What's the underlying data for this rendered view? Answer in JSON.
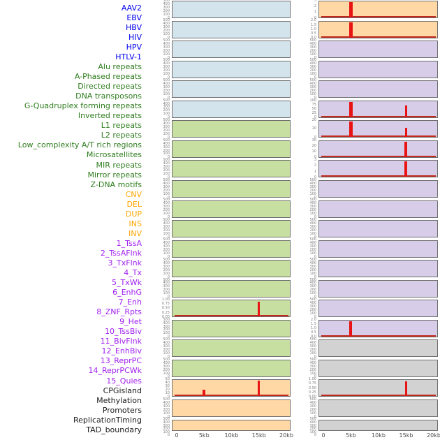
{
  "chart_data": {
    "type": "multi-track-bar",
    "description": "Two columns of 22 genomic signal panels over a 0-20kb window; red spikes mark enrichment at 5kb and 15kb; spike height h is fraction of panel height",
    "x_axis": {
      "ticks": [
        "0",
        "5kb",
        "10kb",
        "15kb",
        "20kb"
      ],
      "range_kb": [
        0,
        20
      ]
    },
    "default_yticks": [
      "500",
      "400",
      "300",
      "200",
      "100",
      "0"
    ],
    "palette": {
      "virus": {
        "label": "#0000ee",
        "panel": "#d4e4ec"
      },
      "repeats": {
        "label": "#2e7d1e",
        "panel": "#c8dfa2"
      },
      "sv": {
        "label": "#ffa500",
        "panel": "#ffd8a5"
      },
      "chromatin": {
        "label": "#a020f0",
        "panel": "#d7cde8"
      },
      "other": {
        "label": "#1a1a1a",
        "panel": "#d2d2d2"
      }
    },
    "spike_color": "#e81414",
    "baseline_color": "#c22a1e",
    "tracks": [
      {
        "label": "AAV2",
        "category": "virus",
        "column": "left"
      },
      {
        "label": "EBV",
        "category": "virus",
        "column": "left"
      },
      {
        "label": "HBV",
        "category": "virus",
        "column": "left"
      },
      {
        "label": "HIV",
        "category": "virus",
        "column": "left"
      },
      {
        "label": "HPV",
        "category": "virus",
        "column": "left"
      },
      {
        "label": "HTLV-1",
        "category": "virus",
        "column": "left"
      },
      {
        "label": "Alu repeats",
        "category": "repeats",
        "column": "left"
      },
      {
        "label": "A-Phased repeats",
        "category": "repeats",
        "column": "left"
      },
      {
        "label": "Directed repeats",
        "category": "repeats",
        "column": "left"
      },
      {
        "label": "DNA transposons",
        "category": "repeats",
        "column": "left"
      },
      {
        "label": "G-Quadruplex forming repeats",
        "category": "repeats",
        "column": "left"
      },
      {
        "label": "Inverted repeats",
        "category": "repeats",
        "column": "left"
      },
      {
        "label": "L1 repeats",
        "category": "repeats",
        "column": "left"
      },
      {
        "label": "L2 repeats",
        "category": "repeats",
        "column": "left"
      },
      {
        "label": "Low_complexity A/T rich regions",
        "category": "repeats",
        "column": "left"
      },
      {
        "label": "Microsatellites",
        "category": "repeats",
        "column": "left",
        "yticks": [
          "1.00",
          "0.75",
          "0.50",
          "0.25",
          "0.00"
        ],
        "spikes": [
          {
            "x_kb": 15,
            "h": 0.95,
            "w": 3
          }
        ],
        "baseline": true
      },
      {
        "label": "MIR repeats",
        "category": "repeats",
        "column": "left"
      },
      {
        "label": "Mirror repeats",
        "category": "repeats",
        "column": "left"
      },
      {
        "label": "Z-DNA motifs",
        "category": "repeats",
        "column": "left"
      },
      {
        "label": "CNV",
        "category": "sv",
        "column": "left",
        "yticks": [
          "50",
          "40",
          "30",
          "20",
          "10",
          "0"
        ],
        "spikes": [
          {
            "x_kb": 5,
            "h": 0.4,
            "w": 4
          },
          {
            "x_kb": 15,
            "h": 1,
            "w": 3
          }
        ],
        "baseline": true
      },
      {
        "label": "DEL",
        "category": "sv",
        "column": "left"
      },
      {
        "label": "DUP",
        "category": "sv",
        "column": "left"
      },
      {
        "label": "INS",
        "category": "sv",
        "column": "right",
        "yticks": [
          "3",
          "2",
          "1",
          "0"
        ],
        "spikes": [
          {
            "x_kb": 5,
            "h": 1,
            "w": 5
          }
        ],
        "baseline": true
      },
      {
        "label": "INV",
        "category": "sv",
        "column": "right",
        "yticks": [
          "2.0",
          "1.5",
          "1.0",
          "0.5",
          "0.0"
        ],
        "spikes": [
          {
            "x_kb": 5,
            "h": 1,
            "w": 5
          }
        ],
        "baseline": true
      },
      {
        "label": "1_TssA",
        "category": "chromatin",
        "column": "right"
      },
      {
        "label": "2_TssAFlnk",
        "category": "chromatin",
        "column": "right"
      },
      {
        "label": "3_TxFlnk",
        "category": "chromatin",
        "column": "right"
      },
      {
        "label": "4_Tx",
        "category": "chromatin",
        "column": "right",
        "yticks": [
          "100",
          "75",
          "50",
          "25",
          "0"
        ],
        "spikes": [
          {
            "x_kb": 5,
            "h": 1,
            "w": 5
          },
          {
            "x_kb": 15,
            "h": 0.78,
            "w": 3
          }
        ],
        "baseline": true
      },
      {
        "label": "5_TxWk",
        "category": "chromatin",
        "column": "right",
        "yticks": [
          "20",
          "10",
          "0"
        ],
        "spikes": [
          {
            "x_kb": 5,
            "h": 1,
            "w": 5
          },
          {
            "x_kb": 15,
            "h": 0.6,
            "w": 3
          }
        ],
        "baseline": true
      },
      {
        "label": "6_EnhG",
        "category": "chromatin",
        "column": "right",
        "yticks": [
          "30",
          "20",
          "10",
          "0"
        ],
        "spikes": [
          {
            "x_kb": 15,
            "h": 1,
            "w": 4
          }
        ],
        "baseline": true
      },
      {
        "label": "7_Enh",
        "category": "chromatin",
        "column": "right",
        "yticks": [
          "3",
          "2",
          "1",
          "0"
        ],
        "spikes": [
          {
            "x_kb": 15,
            "h": 1,
            "w": 4
          }
        ],
        "baseline": true
      },
      {
        "label": "8_ZNF_Rpts",
        "category": "chromatin",
        "column": "right"
      },
      {
        "label": "9_Het",
        "category": "chromatin",
        "column": "right"
      },
      {
        "label": "10_TssBiv",
        "category": "chromatin",
        "column": "right"
      },
      {
        "label": "11_BivFlnk",
        "category": "chromatin",
        "column": "right"
      },
      {
        "label": "12_EnhBiv",
        "category": "chromatin",
        "column": "right"
      },
      {
        "label": "13_ReprPC",
        "category": "chromatin",
        "column": "right"
      },
      {
        "label": "14_ReprPCWk",
        "category": "chromatin",
        "column": "right"
      },
      {
        "label": "15_Quies",
        "category": "chromatin",
        "column": "right",
        "yticks": [
          "2.0",
          "1.5",
          "1.0",
          "0.5",
          "0.0"
        ],
        "spikes": [
          {
            "x_kb": 5,
            "h": 1,
            "w": 4
          }
        ],
        "baseline": true
      },
      {
        "label": "CPGisland",
        "category": "other",
        "column": "right"
      },
      {
        "label": "Methylation",
        "category": "other",
        "column": "right"
      },
      {
        "label": "Promoters",
        "category": "other",
        "column": "right",
        "yticks": [
          "1.00",
          "0.75",
          "0.50",
          "0.25",
          "0.00"
        ],
        "spikes": [
          {
            "x_kb": 15,
            "h": 0.95,
            "w": 3
          }
        ],
        "baseline": true
      },
      {
        "label": "ReplicationTiming",
        "category": "other",
        "column": "right"
      },
      {
        "label": "TAD_boundary",
        "category": "other",
        "column": "right"
      }
    ]
  }
}
